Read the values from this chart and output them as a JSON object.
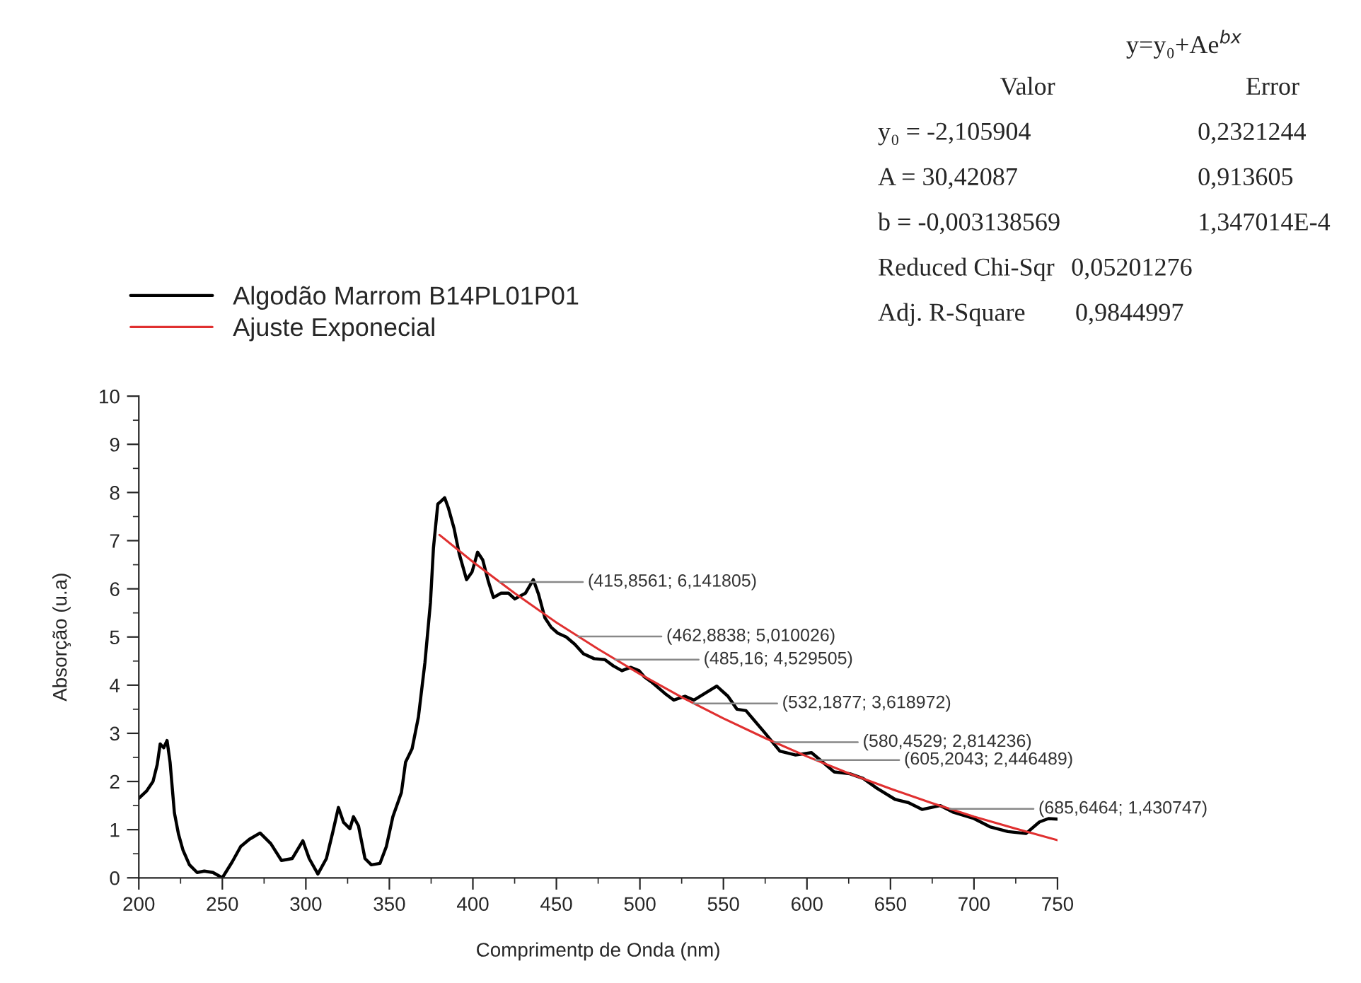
{
  "chart_data": {
    "type": "line",
    "xlabel": "Comprimentp de Onda (nm)",
    "ylabel": "Absorção (u.a)",
    "xlim": [
      200,
      750
    ],
    "xticks": [
      200,
      250,
      300,
      350,
      400,
      450,
      500,
      550,
      600,
      650,
      700,
      750
    ],
    "ylim": [
      0,
      10
    ],
    "yticks": [
      0,
      1,
      2,
      3,
      4,
      5,
      6,
      7,
      8,
      9,
      10
    ],
    "grid": false,
    "legend": "top left",
    "series": [
      {
        "name": "Algodão Marrom B14PL01P01",
        "color": "#000000",
        "x": [
          200,
          204.6,
          208.5,
          211,
          212.8,
          214.9,
          216.9,
          218.7,
          221.3,
          223.8,
          226.4,
          230.3,
          234.9,
          239.2,
          244.4,
          250,
          255.9,
          261,
          266.2,
          272.6,
          279,
          285.4,
          291.8,
          298.2,
          302,
          307.2,
          312.3,
          316.2,
          319.5,
          322.6,
          326.4,
          328.5,
          331.5,
          335.4,
          339.2,
          344.4,
          348.2,
          352.1,
          357.2,
          359.7,
          363.6,
          367.4,
          371.3,
          374.6,
          376.4,
          379,
          381,
          383.1,
          385.4,
          388.7,
          391.8,
          396.2,
          399.5,
          402.8,
          405.9,
          409.2,
          412.3,
          416.9,
          421.3,
          425.1,
          431.5,
          436.2,
          439.2,
          443.1,
          446.9,
          450.8,
          455.9,
          461,
          466.2,
          472.6,
          479,
          484.1,
          489.2,
          494.4,
          499.5,
          502.7,
          506.8,
          514.9,
          520.3,
          527,
          532.4,
          546,
          552.7,
          558.1,
          563.5,
          574.3,
          583.8,
          593.2,
          602.7,
          609.5,
          616.2,
          625.7,
          633.8,
          641.9,
          652.7,
          660.8,
          668.9,
          679.7,
          687.8,
          700,
          709.5,
          720.3,
          731.1,
          739.2,
          744.6,
          750
        ],
        "values": [
          1.65,
          1.8,
          2.0,
          2.35,
          2.78,
          2.7,
          2.85,
          2.4,
          1.35,
          0.9,
          0.58,
          0.27,
          0.11,
          0.14,
          0.11,
          0,
          0.33,
          0.65,
          0.8,
          0.93,
          0.71,
          0.36,
          0.4,
          0.77,
          0.4,
          0.08,
          0.4,
          0.96,
          1.46,
          1.15,
          1.02,
          1.27,
          1.08,
          0.4,
          0.27,
          0.3,
          0.65,
          1.27,
          1.77,
          2.4,
          2.68,
          3.34,
          4.47,
          5.72,
          6.85,
          7.76,
          7.82,
          7.89,
          7.67,
          7.26,
          6.73,
          6.19,
          6.35,
          6.76,
          6.6,
          6.16,
          5.82,
          5.91,
          5.91,
          5.79,
          5.91,
          6.19,
          5.9,
          5.4,
          5.2,
          5.08,
          5.0,
          4.85,
          4.65,
          4.55,
          4.53,
          4.4,
          4.3,
          4.37,
          4.3,
          4.17,
          4.07,
          3.83,
          3.69,
          3.77,
          3.69,
          3.98,
          3.77,
          3.5,
          3.47,
          3.03,
          2.63,
          2.55,
          2.6,
          2.4,
          2.2,
          2.16,
          2.06,
          1.86,
          1.63,
          1.56,
          1.42,
          1.5,
          1.36,
          1.23,
          1.06,
          0.96,
          0.92,
          1.16,
          1.23,
          1.22
        ]
      },
      {
        "name": "Ajuste Exponecial",
        "color": "#e03030",
        "x": [
          380,
          400,
          425,
          450,
          475,
          500,
          525,
          550,
          575,
          600,
          625,
          650,
          675,
          700,
          725,
          750
        ],
        "values": [
          7.12,
          6.56,
          5.91,
          5.3,
          4.75,
          4.23,
          3.75,
          3.31,
          2.9,
          2.52,
          2.17,
          1.85,
          1.55,
          1.27,
          1.02,
          0.78
        ]
      }
    ],
    "annotations": [
      "y=y₀+Ae$^{bx}$",
      "Valor",
      "Error",
      "y₀ = -2,105904",
      "0,2321244",
      "A = 30,42087",
      "0,913605",
      "b = -0,003138569",
      "1,347014E-4",
      "Reduced Chi-Sqr",
      "0,05201276",
      "Adj. R-Square",
      "0,9844997",
      {
        "text": "(415,8561; 6,141805)",
        "x": 415.8561,
        "y": 6.141805
      },
      {
        "text": "(462,8838; 5,010026)",
        "x": 462.8838,
        "y": 5.010026
      },
      {
        "text": "(485,16; 4,529505)",
        "x": 485.16,
        "y": 4.529505
      },
      {
        "text": "(532,1877; 3,618972)",
        "x": 532.1877,
        "y": 3.618972
      },
      {
        "text": "(580,4529; 2,814236)",
        "x": 580.4529,
        "y": 2.814236
      },
      {
        "text": "(605,2043; 2,446489)",
        "x": 605.2043,
        "y": 2.446489
      },
      {
        "text": "(685,6464; 1,430747)",
        "x": 685.6464,
        "y": 1.430747
      }
    ]
  }
}
